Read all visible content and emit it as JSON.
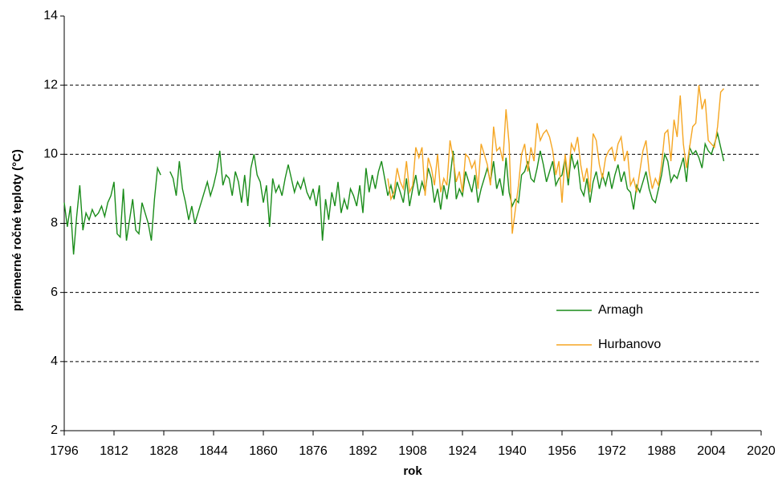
{
  "chart_data": {
    "type": "line",
    "x_label": "rok",
    "y_label": "priemerné ročné teploty (°C)",
    "xlim": [
      1796,
      2020
    ],
    "xticks": [
      1796,
      1812,
      1828,
      1844,
      1860,
      1876,
      1892,
      1908,
      1924,
      1940,
      1956,
      1972,
      1988,
      2004,
      2020
    ],
    "ylim": [
      2,
      14
    ],
    "yticks": [
      2,
      4,
      6,
      8,
      10,
      12,
      14
    ],
    "grid": true,
    "x": [
      1796,
      1797,
      1798,
      1799,
      1800,
      1801,
      1802,
      1803,
      1804,
      1805,
      1806,
      1807,
      1808,
      1809,
      1810,
      1811,
      1812,
      1813,
      1814,
      1815,
      1816,
      1817,
      1818,
      1819,
      1820,
      1821,
      1822,
      1823,
      1824,
      1825,
      1826,
      1827,
      1828,
      1829,
      1830,
      1831,
      1832,
      1833,
      1834,
      1835,
      1836,
      1837,
      1838,
      1839,
      1840,
      1841,
      1842,
      1843,
      1844,
      1845,
      1846,
      1847,
      1848,
      1849,
      1850,
      1851,
      1852,
      1853,
      1854,
      1855,
      1856,
      1857,
      1858,
      1859,
      1860,
      1861,
      1862,
      1863,
      1864,
      1865,
      1866,
      1867,
      1868,
      1869,
      1870,
      1871,
      1872,
      1873,
      1874,
      1875,
      1876,
      1877,
      1878,
      1879,
      1880,
      1881,
      1882,
      1883,
      1884,
      1885,
      1886,
      1887,
      1888,
      1889,
      1890,
      1891,
      1892,
      1893,
      1894,
      1895,
      1896,
      1897,
      1898,
      1899,
      1900,
      1901,
      1902,
      1903,
      1904,
      1905,
      1906,
      1907,
      1908,
      1909,
      1910,
      1911,
      1912,
      1913,
      1914,
      1915,
      1916,
      1917,
      1918,
      1919,
      1920,
      1921,
      1922,
      1923,
      1924,
      1925,
      1926,
      1927,
      1928,
      1929,
      1930,
      1931,
      1932,
      1933,
      1934,
      1935,
      1936,
      1937,
      1938,
      1939,
      1940,
      1941,
      1942,
      1943,
      1944,
      1945,
      1946,
      1947,
      1948,
      1949,
      1950,
      1951,
      1952,
      1953,
      1954,
      1955,
      1956,
      1957,
      1958,
      1959,
      1960,
      1961,
      1962,
      1963,
      1964,
      1965,
      1966,
      1967,
      1968,
      1969,
      1970,
      1971,
      1972,
      1973,
      1974,
      1975,
      1976,
      1977,
      1978,
      1979,
      1980,
      1981,
      1982,
      1983,
      1984,
      1985,
      1986,
      1987,
      1988,
      1989,
      1990,
      1991,
      1992,
      1993,
      1994,
      1995,
      1996,
      1997,
      1998,
      1999,
      2000,
      2001,
      2002,
      2003,
      2004,
      2005,
      2006,
      2007,
      2008
    ],
    "series": [
      {
        "name": "Armagh",
        "color": "#1a8c1a",
        "values": [
          8.6,
          7.9,
          8.5,
          7.1,
          8.2,
          9.1,
          7.8,
          8.3,
          8.1,
          8.4,
          8.2,
          8.3,
          8.5,
          8.2,
          8.6,
          8.8,
          9.2,
          7.7,
          7.6,
          9.0,
          7.5,
          8.1,
          8.7,
          7.8,
          7.7,
          8.6,
          8.3,
          8.0,
          7.5,
          8.7,
          9.6,
          9.4,
          null,
          null,
          9.5,
          9.3,
          8.8,
          9.8,
          9.0,
          8.6,
          8.1,
          8.5,
          8.0,
          8.3,
          8.6,
          8.9,
          9.2,
          8.8,
          9.1,
          9.5,
          10.1,
          9.1,
          9.4,
          9.3,
          8.8,
          9.5,
          9.2,
          8.6,
          9.4,
          8.5,
          9.6,
          10.0,
          9.4,
          9.2,
          8.6,
          9.1,
          7.9,
          9.3,
          8.9,
          9.1,
          8.8,
          9.3,
          9.7,
          9.3,
          8.9,
          9.2,
          9.0,
          9.3,
          8.9,
          8.7,
          9.0,
          8.5,
          9.1,
          7.5,
          8.7,
          8.1,
          8.9,
          8.5,
          9.2,
          8.3,
          8.7,
          8.4,
          9.0,
          8.8,
          8.5,
          9.1,
          8.3,
          9.6,
          8.9,
          9.4,
          9.0,
          9.5,
          9.8,
          9.3,
          8.8,
          9.1,
          8.7,
          9.2,
          8.9,
          8.6,
          9.3,
          8.5,
          9.0,
          9.4,
          8.8,
          9.2,
          8.9,
          9.6,
          9.3,
          8.6,
          9.0,
          8.4,
          9.1,
          8.7,
          9.3,
          10.1,
          8.7,
          9.0,
          8.8,
          9.5,
          9.2,
          8.9,
          9.4,
          8.6,
          9.0,
          9.3,
          9.6,
          9.2,
          9.8,
          9.0,
          9.3,
          8.8,
          9.9,
          8.9,
          8.5,
          8.7,
          8.6,
          9.4,
          9.5,
          9.8,
          9.3,
          9.2,
          9.6,
          10.1,
          9.7,
          9.2,
          9.5,
          9.8,
          9.1,
          9.3,
          9.4,
          9.9,
          9.1,
          10.0,
          9.6,
          9.8,
          9.0,
          8.8,
          9.3,
          8.6,
          9.2,
          9.5,
          9.0,
          9.4,
          9.1,
          9.5,
          9.0,
          9.4,
          9.7,
          9.2,
          9.5,
          9.0,
          8.9,
          8.4,
          9.1,
          8.9,
          9.2,
          9.5,
          9.0,
          8.7,
          8.6,
          9.0,
          9.4,
          10.0,
          9.8,
          9.2,
          9.4,
          9.3,
          9.6,
          9.9,
          9.2,
          10.2,
          10.0,
          10.1,
          9.9,
          9.6,
          10.3,
          10.1,
          10.0,
          10.3,
          10.6,
          10.2,
          9.8
        ]
      },
      {
        "name": "Hurbanovo",
        "color": "#f5a623",
        "values": [
          null,
          null,
          null,
          null,
          null,
          null,
          null,
          null,
          null,
          null,
          null,
          null,
          null,
          null,
          null,
          null,
          null,
          null,
          null,
          null,
          null,
          null,
          null,
          null,
          null,
          null,
          null,
          null,
          null,
          null,
          null,
          null,
          null,
          null,
          null,
          null,
          null,
          null,
          null,
          null,
          null,
          null,
          null,
          null,
          null,
          null,
          null,
          null,
          null,
          null,
          null,
          null,
          null,
          null,
          null,
          null,
          null,
          null,
          null,
          null,
          null,
          null,
          null,
          null,
          null,
          null,
          null,
          null,
          null,
          null,
          null,
          null,
          null,
          null,
          null,
          null,
          null,
          null,
          null,
          null,
          null,
          null,
          null,
          null,
          null,
          null,
          null,
          null,
          null,
          null,
          null,
          null,
          null,
          null,
          null,
          null,
          null,
          null,
          null,
          null,
          null,
          null,
          null,
          null,
          9.3,
          8.7,
          8.9,
          9.6,
          9.2,
          9.0,
          9.8,
          8.9,
          9.1,
          10.2,
          9.9,
          10.2,
          8.8,
          9.9,
          9.6,
          9.1,
          10.0,
          8.9,
          9.3,
          9.1,
          10.4,
          9.9,
          9.2,
          9.5,
          8.9,
          10.0,
          9.9,
          9.6,
          9.8,
          9.0,
          10.3,
          10.0,
          9.7,
          9.1,
          10.8,
          10.1,
          10.2,
          9.8,
          11.3,
          10.3,
          7.7,
          8.4,
          9.1,
          10.0,
          10.3,
          9.5,
          10.2,
          9.8,
          10.9,
          10.4,
          10.6,
          10.7,
          10.5,
          10.1,
          9.4,
          9.8,
          8.6,
          10.0,
          9.3,
          10.3,
          10.1,
          10.5,
          9.7,
          9.2,
          9.6,
          8.9,
          10.6,
          10.4,
          9.7,
          9.3,
          9.9,
          10.1,
          10.2,
          9.8,
          10.3,
          10.5,
          9.8,
          10.1,
          9.1,
          9.3,
          8.9,
          9.5,
          10.1,
          10.4,
          9.5,
          9.0,
          9.3,
          9.1,
          9.7,
          10.6,
          10.7,
          9.8,
          11.0,
          10.5,
          11.7,
          10.3,
          9.6,
          10.2,
          10.8,
          10.9,
          12.0,
          11.3,
          11.6,
          10.4,
          10.3,
          10.2,
          10.8,
          11.8,
          11.9
        ]
      }
    ]
  }
}
